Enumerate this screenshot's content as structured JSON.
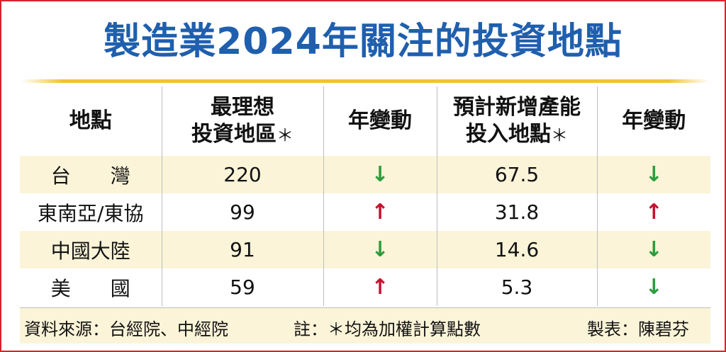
{
  "title": "製造業2024年關注的投資地點",
  "headers": {
    "location": "地點",
    "ideal_line1": "最理想",
    "ideal_line2": "投資地區",
    "change1": "年變動",
    "capacity_line1": "預計新增產能",
    "capacity_line2": "投入地點",
    "change2": "年變動",
    "star": "＊"
  },
  "rows": [
    {
      "location": "台　　灣",
      "ideal": "220",
      "change1": "down",
      "capacity": "67.5",
      "change2": "down"
    },
    {
      "location": "東南亞/東協",
      "ideal": "99",
      "change1": "up",
      "capacity": "31.8",
      "change2": "up"
    },
    {
      "location": "中國大陸",
      "ideal": "91",
      "change1": "down",
      "capacity": "14.6",
      "change2": "down"
    },
    {
      "location": "美　　國",
      "ideal": "59",
      "change1": "up",
      "capacity": "5.3",
      "change2": "down"
    }
  ],
  "arrows": {
    "up": "↑",
    "down": "↓"
  },
  "colors": {
    "title": "#1f5fae",
    "up": "#c8102e",
    "down": "#2e9b3c",
    "band": "#fbf4d8",
    "border": "#d7242a"
  },
  "footer": {
    "source": "資料來源：台經院、中經院",
    "note": "註：＊均為加權計算點數",
    "author": "製表：陳碧芬"
  }
}
